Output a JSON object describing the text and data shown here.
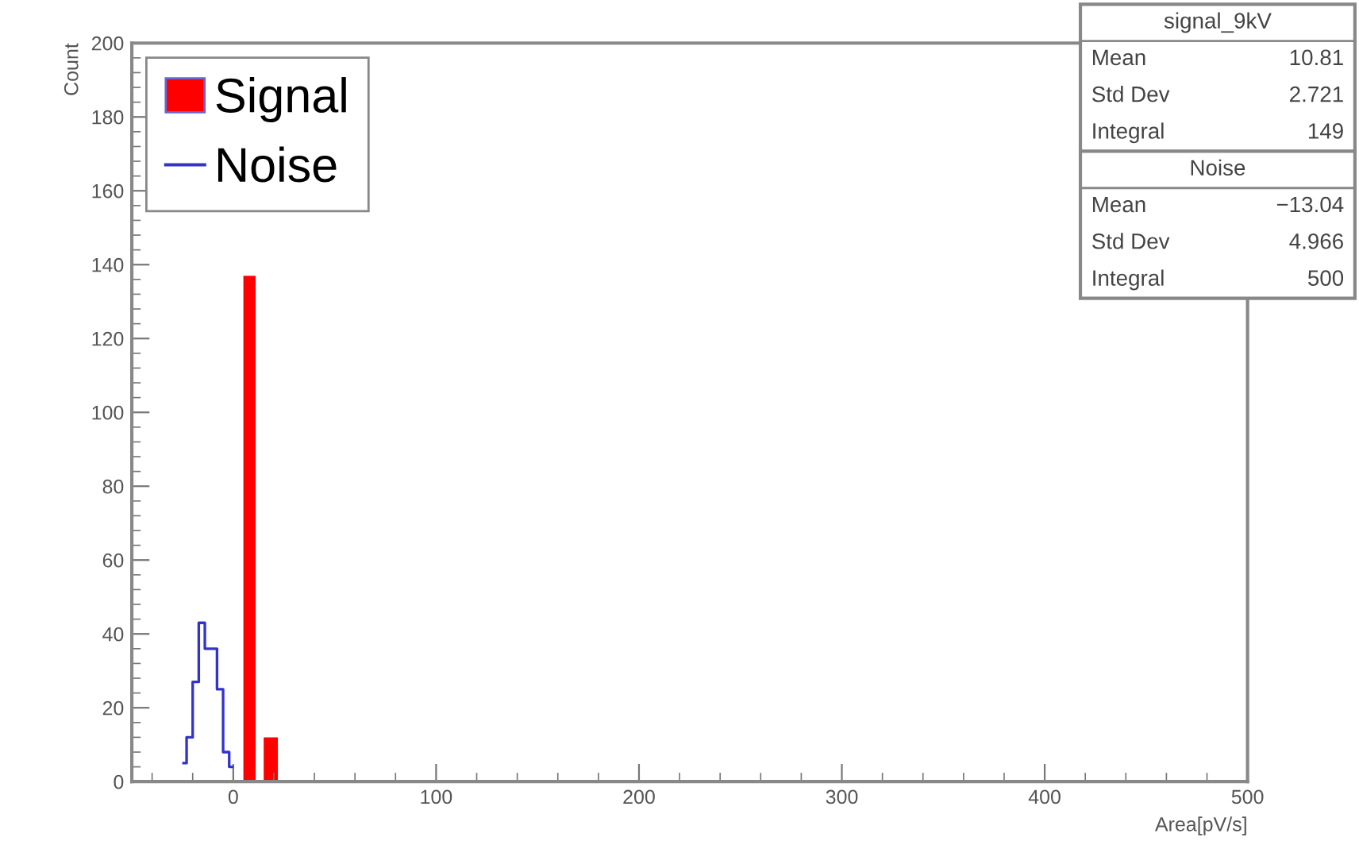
{
  "chart_data": {
    "type": "histogram",
    "xlabel": "Area[pV/s]",
    "ylabel": "Count",
    "series": [
      {
        "name": "Signal",
        "color": "#ff0000",
        "bins": [
          5,
          11,
          15,
          22
        ],
        "values": [
          137,
          0,
          12
        ]
      },
      {
        "name": "Noise",
        "type": "step",
        "color": "#3333cc",
        "x": [
          -24.5,
          -21.5,
          -18.5,
          -15.5,
          -12.5,
          -9.5,
          -6.5,
          -3.5,
          -0.5
        ],
        "values": [
          5,
          12,
          27,
          43,
          36,
          36,
          25,
          8,
          4
        ]
      }
    ],
    "xlim": [
      -50,
      500
    ],
    "xticks": [
      0,
      100,
      200,
      300,
      400,
      500
    ],
    "ylim": [
      0,
      200
    ],
    "yticks": [
      0,
      20,
      40,
      60,
      80,
      100,
      120,
      140,
      160,
      180,
      200
    ],
    "grid": false,
    "legend": "top left",
    "annotations": [
      "signal_9kV",
      "Mean 10.81",
      "Std Dev 2.721",
      "Integral 149",
      "Noise",
      "Mean −13.04",
      "Std Dev 4.966",
      "Integral 500"
    ]
  }
}
